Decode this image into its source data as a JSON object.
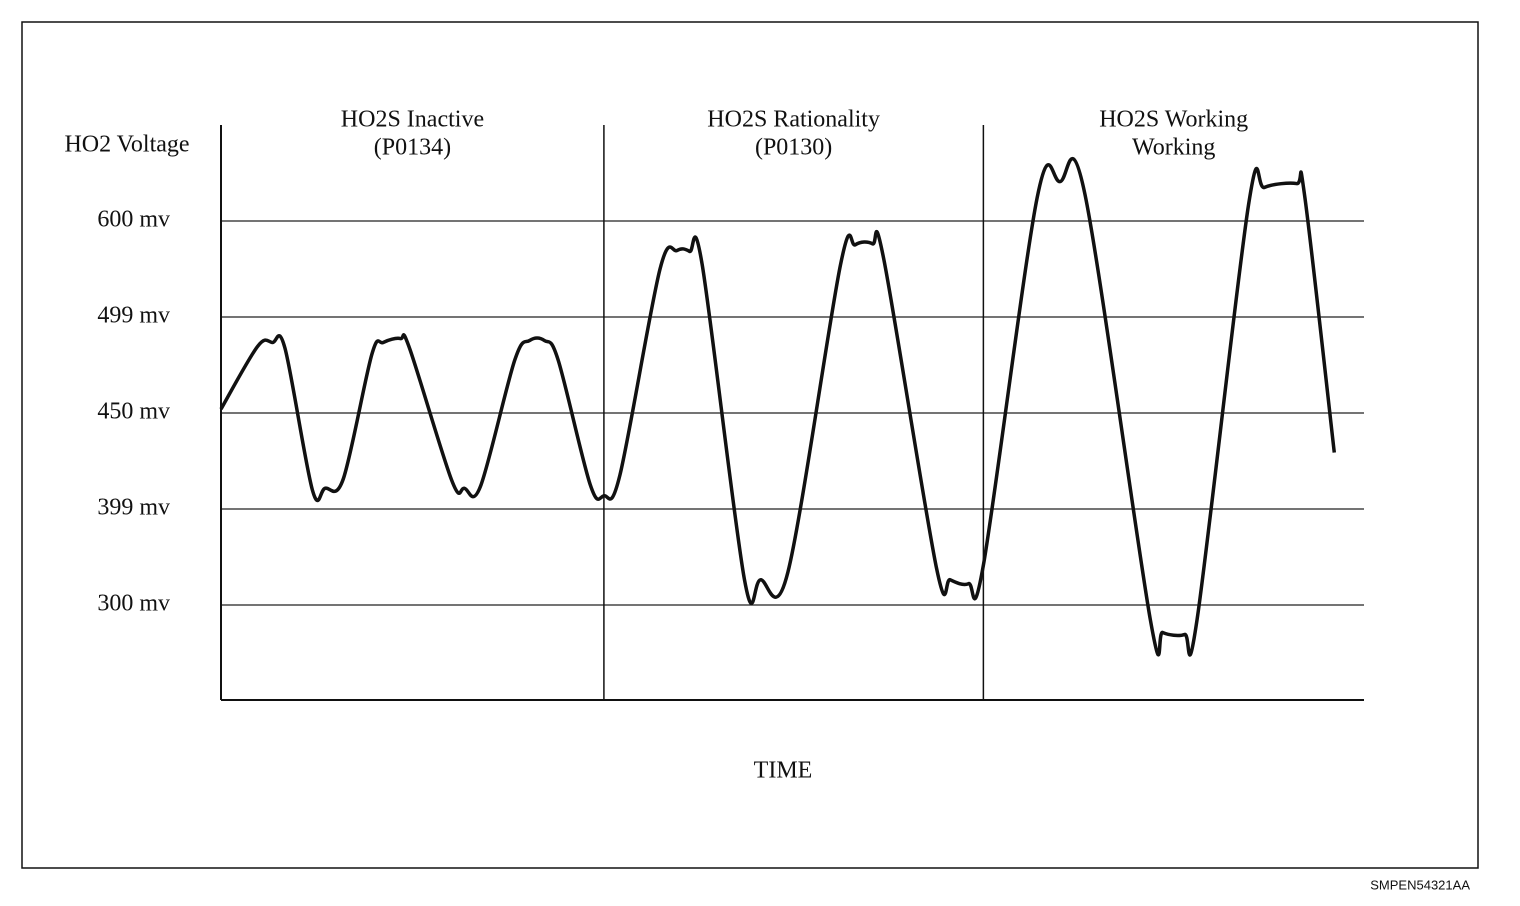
{
  "chart_data": {
    "type": "line",
    "y_label": "HO2 Voltage",
    "x_label": "TIME",
    "figure_code": "SMPEN54321AA",
    "regions": [
      {
        "lines": [
          "HO2S Inactive",
          "(P0134)"
        ]
      },
      {
        "lines": [
          "HO2S Rationality",
          "(P0130)"
        ]
      },
      {
        "lines": [
          "HO2S Working",
          "Working"
        ]
      }
    ],
    "dividers": [
      33.5,
      66.7
    ],
    "xlim": [
      0,
      100
    ],
    "ylim": [
      200,
      700
    ],
    "yticks": [
      {
        "value": 300,
        "label": "300 mv"
      },
      {
        "value": 399,
        "label": "399 mv"
      },
      {
        "value": 450,
        "label": "450 mv"
      },
      {
        "value": 499,
        "label": "499 mv"
      },
      {
        "value": 600,
        "label": "600 mv"
      }
    ],
    "grid": true,
    "color": "#111111",
    "x": [
      0,
      3.2,
      4.5,
      5.6,
      8.0,
      9.1,
      10.7,
      13.2,
      14.2,
      15.7,
      16.5,
      20.2,
      21.3,
      22.7,
      25.7,
      27.0,
      28.3,
      29.5,
      32.3,
      33.5,
      34.9,
      38.4,
      39.9,
      41.0,
      42.1,
      45.8,
      47.2,
      49.6,
      54.2,
      55.5,
      57.0,
      58.0,
      62.6,
      63.8,
      65.4,
      66.7,
      71.4,
      73.4,
      75.6,
      81.3,
      82.4,
      84.3,
      85.4,
      89.9,
      91.3,
      94.1,
      94.8,
      97.4
    ],
    "values": [
      452,
      484,
      486,
      483,
      409,
      410,
      415,
      480,
      486,
      488,
      483,
      414,
      410,
      411,
      477,
      487,
      487,
      477,
      412,
      406,
      417,
      549,
      569,
      568,
      554,
      326,
      326,
      334,
      554,
      575,
      576,
      559,
      338,
      326,
      322,
      341,
      624,
      641,
      627,
      285,
      271,
      269,
      285,
      617,
      635,
      639,
      627,
      429
    ]
  }
}
